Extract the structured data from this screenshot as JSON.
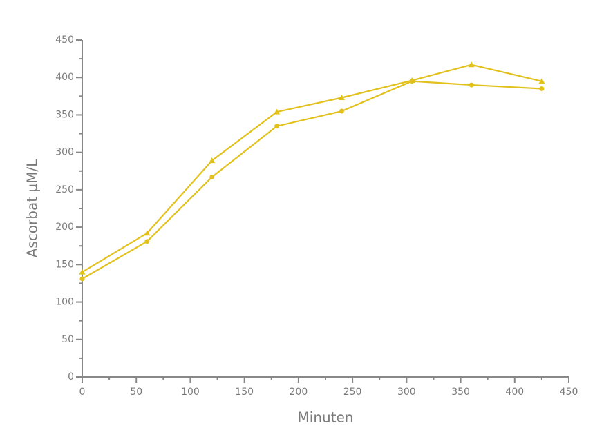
{
  "chart_data": {
    "type": "line",
    "x_label": "Minuten",
    "y_label": "Ascorbat µM/L",
    "series": [
      {
        "color": "#e2c11c",
        "marker": "circle",
        "x": [
          0,
          60,
          120,
          180,
          240,
          305,
          360,
          425
        ],
        "values": [
          131,
          181,
          267,
          335,
          355,
          395,
          390,
          385
        ]
      },
      {
        "color": "#e2c11c",
        "marker": "triangle",
        "x": [
          0,
          60,
          120,
          180,
          240,
          305,
          360,
          425
        ],
        "values": [
          140,
          192,
          289,
          354,
          373,
          396,
          417,
          395
        ]
      }
    ],
    "xlim": [
      0,
      450
    ],
    "xticks": [
      0,
      50,
      100,
      150,
      200,
      250,
      300,
      350,
      400,
      450
    ],
    "xminorticks": [
      25,
      75,
      125,
      175,
      225,
      275,
      325,
      375,
      425
    ],
    "ylim": [
      0,
      450
    ],
    "yticks": [
      0,
      50,
      100,
      150,
      200,
      250,
      300,
      350,
      400,
      450
    ],
    "yminorticks": [
      25,
      75,
      125,
      175,
      225,
      275,
      325,
      375,
      425
    ],
    "grid": false
  }
}
